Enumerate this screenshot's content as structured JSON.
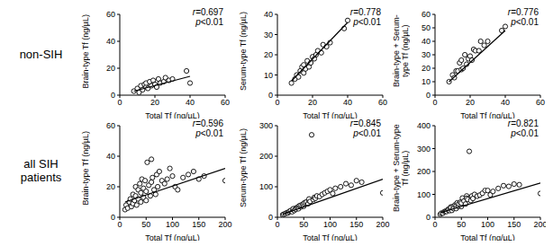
{
  "chart_data": [
    {
      "type": "scatter",
      "subtitle": "non-SIH",
      "xlabel": "Total Tf (ng/µL)",
      "ylabel": "Brain-type Tf (ng/µL)",
      "marker": "circle_open",
      "color": "#000000",
      "x": [
        8,
        10,
        11,
        12,
        13,
        14,
        15,
        15,
        16,
        17,
        18,
        19,
        20,
        21,
        22,
        23,
        25,
        26,
        28,
        30,
        38,
        40
      ],
      "values": [
        3,
        5,
        2,
        7,
        4,
        8,
        6,
        9,
        5,
        10,
        7,
        11,
        8,
        6,
        12,
        9,
        10,
        13,
        11,
        12,
        18,
        9
      ],
      "xlim": [
        0,
        60
      ],
      "xticks": [
        0,
        20,
        40,
        60
      ],
      "ylim": [
        0,
        60
      ],
      "yticks": [
        0,
        20,
        40,
        60
      ],
      "annotations": [
        "r=0.697",
        "p<0.01"
      ],
      "trend": {
        "x": [
          8,
          40
        ],
        "y": [
          3,
          14
        ]
      }
    },
    {
      "type": "scatter",
      "xlabel": "Total Tf (ng/µL)",
      "ylabel": "Serum-type Tf (ng/µL)",
      "marker": "circle_open",
      "color": "#000000",
      "x": [
        8,
        10,
        11,
        12,
        13,
        14,
        15,
        15,
        16,
        17,
        18,
        19,
        20,
        21,
        22,
        23,
        25,
        26,
        28,
        30,
        38,
        40
      ],
      "values": [
        6,
        8,
        10,
        9,
        12,
        14,
        11,
        15,
        13,
        17,
        14,
        16,
        19,
        18,
        20,
        22,
        21,
        25,
        24,
        26,
        33,
        37
      ],
      "xlim": [
        0,
        60
      ],
      "xticks": [
        0,
        20,
        40,
        60
      ],
      "ylim": [
        0,
        40
      ],
      "yticks": [
        0,
        10,
        20,
        30,
        40
      ],
      "annotations": [
        "r=0.778",
        "p<0.01"
      ],
      "trend": {
        "x": [
          8,
          40
        ],
        "y": [
          7,
          36
        ]
      }
    },
    {
      "type": "scatter",
      "xlabel": "Total Tf (ng/µL)",
      "ylabel": "Brain-type + Serum-type Tf (ng/µL)",
      "marker": "circle_open",
      "color": "#000000",
      "x": [
        8,
        10,
        11,
        12,
        13,
        14,
        15,
        15,
        16,
        17,
        18,
        19,
        20,
        21,
        22,
        23,
        25,
        26,
        28,
        30,
        38,
        40
      ],
      "values": [
        10,
        15,
        13,
        18,
        18,
        24,
        19,
        26,
        20,
        30,
        23,
        27,
        29,
        26,
        34,
        33,
        33,
        40,
        37,
        40,
        48,
        51
      ],
      "xlim": [
        0,
        60
      ],
      "xticks": [
        0,
        20,
        40,
        60
      ],
      "ylim": [
        0,
        60
      ],
      "yticks": [
        0,
        10,
        20,
        30,
        40,
        50,
        60
      ],
      "annotations": [
        "r=0.776",
        "p<0.01"
      ],
      "trend": {
        "x": [
          8,
          40
        ],
        "y": [
          10,
          48
        ]
      }
    },
    {
      "type": "scatter",
      "subtitle": "all SIH patients",
      "xlabel": "Total Tf (ng/µL)",
      "ylabel": "Brain-type Tf (ng/µL)",
      "marker": "circle_open",
      "color": "#000000",
      "x": [
        10,
        12,
        15,
        18,
        20,
        22,
        25,
        25,
        28,
        30,
        30,
        32,
        35,
        35,
        38,
        40,
        40,
        42,
        45,
        45,
        48,
        50,
        50,
        52,
        55,
        58,
        60,
        60,
        62,
        65,
        68,
        70,
        72,
        75,
        80,
        85,
        90,
        95,
        100,
        105,
        110,
        120,
        130,
        140,
        150,
        160,
        200
      ],
      "values": [
        5,
        8,
        6,
        10,
        12,
        7,
        15,
        9,
        11,
        20,
        14,
        8,
        18,
        12,
        22,
        16,
        10,
        25,
        13,
        19,
        24,
        11,
        17,
        36,
        21,
        14,
        38,
        23,
        26,
        18,
        15,
        28,
        20,
        30,
        24,
        22,
        25,
        32,
        27,
        20,
        18,
        26,
        28,
        30,
        25,
        27,
        24
      ],
      "xlim": [
        0,
        200
      ],
      "xticks": [
        0,
        50,
        100,
        150,
        200
      ],
      "ylim": [
        0,
        60
      ],
      "yticks": [
        0,
        20,
        40,
        60
      ],
      "annotations": [
        "r=0.596",
        "p<0.01"
      ],
      "trend": {
        "x": [
          10,
          200
        ],
        "y": [
          10,
          32
        ]
      }
    },
    {
      "type": "scatter",
      "xlabel": "Total Tf (ng/µL)",
      "ylabel": "Serum-type Tf (ng/µL)",
      "marker": "circle_open",
      "color": "#000000",
      "x": [
        10,
        12,
        15,
        18,
        20,
        22,
        25,
        25,
        28,
        30,
        30,
        32,
        35,
        35,
        38,
        40,
        40,
        42,
        45,
        45,
        48,
        50,
        50,
        52,
        55,
        58,
        60,
        60,
        62,
        65,
        68,
        70,
        72,
        75,
        80,
        85,
        90,
        95,
        100,
        105,
        110,
        120,
        130,
        140,
        150,
        160,
        200
      ],
      "values": [
        8,
        10,
        12,
        15,
        14,
        18,
        20,
        22,
        18,
        25,
        28,
        22,
        30,
        26,
        32,
        35,
        28,
        38,
        34,
        40,
        42,
        36,
        45,
        48,
        50,
        44,
        55,
        60,
        52,
        270,
        58,
        65,
        62,
        70,
        68,
        75,
        80,
        85,
        90,
        78,
        95,
        100,
        110,
        105,
        120,
        115,
        80
      ],
      "xlim": [
        0,
        200
      ],
      "xticks": [
        0,
        50,
        100,
        150,
        200
      ],
      "ylim": [
        0,
        300
      ],
      "yticks": [
        0,
        100,
        200,
        300
      ],
      "annotations": [
        "r=0.845",
        "p<0.01"
      ],
      "trend": {
        "x": [
          10,
          200
        ],
        "y": [
          10,
          125
        ]
      }
    },
    {
      "type": "scatter",
      "xlabel": "Total Tf (ng/µL)",
      "ylabel": "Brain-type + Serum-type Tf (ng/µL)",
      "marker": "circle_open",
      "color": "#000000",
      "x": [
        10,
        12,
        15,
        18,
        20,
        22,
        25,
        25,
        28,
        30,
        30,
        32,
        35,
        35,
        38,
        40,
        40,
        42,
        45,
        45,
        48,
        50,
        50,
        52,
        55,
        58,
        60,
        60,
        62,
        65,
        68,
        70,
        72,
        75,
        80,
        85,
        90,
        95,
        100,
        105,
        110,
        120,
        130,
        140,
        150,
        160,
        200
      ],
      "values": [
        13,
        18,
        18,
        25,
        26,
        25,
        35,
        31,
        29,
        45,
        42,
        30,
        48,
        38,
        54,
        51,
        38,
        63,
        47,
        59,
        66,
        47,
        62,
        84,
        71,
        58,
        93,
        83,
        78,
        288,
        73,
        93,
        82,
        100,
        92,
        97,
        105,
        117,
        117,
        98,
        113,
        126,
        138,
        135,
        145,
        142,
        104
      ],
      "xlim": [
        0,
        200
      ],
      "xticks": [
        0,
        50,
        100,
        150,
        200
      ],
      "ylim": [
        0,
        400
      ],
      "yticks": [
        0,
        100,
        200,
        300,
        400
      ],
      "annotations": [
        "r=0.821",
        "p<0.01"
      ],
      "trend": {
        "x": [
          10,
          200
        ],
        "y": [
          20,
          150
        ]
      }
    }
  ]
}
